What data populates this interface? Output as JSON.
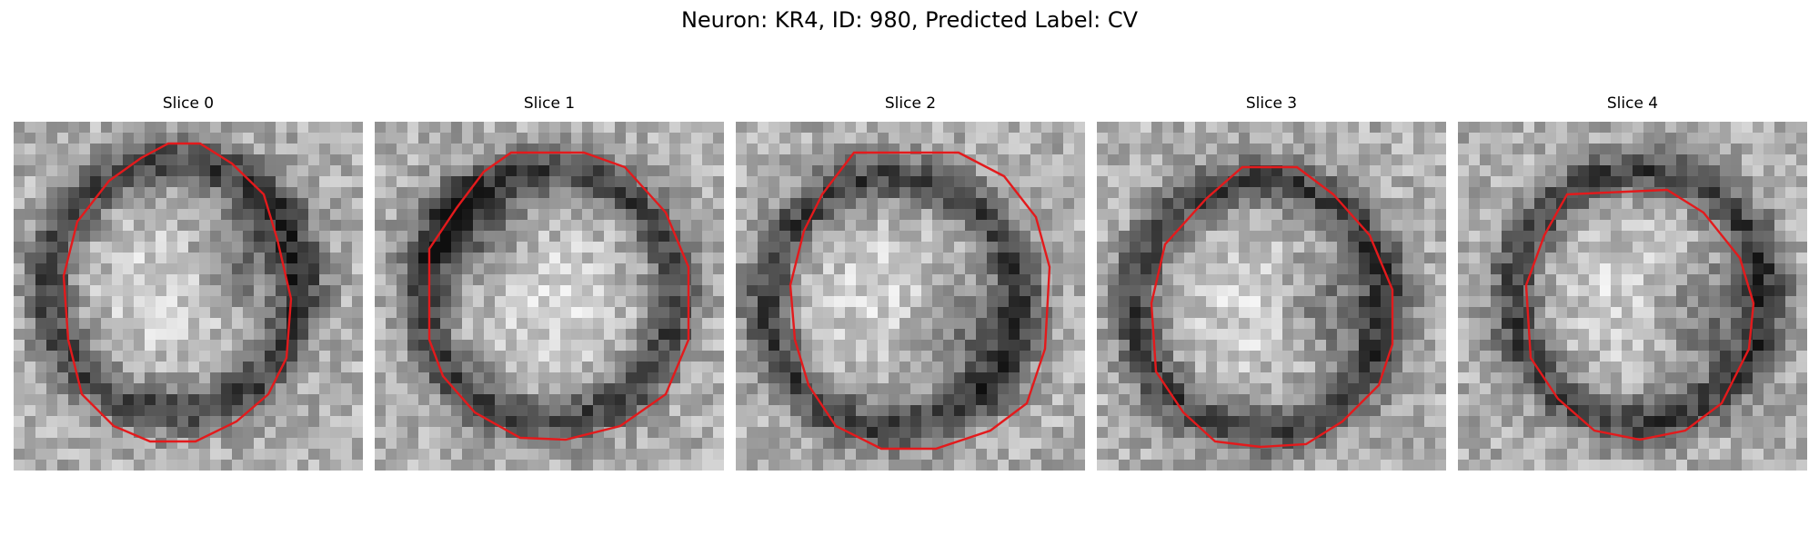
{
  "figure": {
    "title": "Neuron: KR4, ID: 980, Predicted Label: CV",
    "contour_color": "#e31a1c"
  },
  "panels": [
    {
      "title": "Slice 0",
      "blob_center": [
        0.46,
        0.47
      ],
      "dark_offset": [
        0.2,
        -0.08
      ]
    },
    {
      "title": "Slice 1",
      "blob_center": [
        0.5,
        0.5
      ],
      "dark_offset": [
        -0.22,
        -0.18
      ]
    },
    {
      "title": "Slice 2",
      "blob_center": [
        0.45,
        0.52
      ],
      "dark_offset": [
        0.18,
        0.1
      ]
    },
    {
      "title": "Slice 3",
      "blob_center": [
        0.47,
        0.53
      ],
      "dark_offset": [
        0.2,
        0.0
      ]
    },
    {
      "title": "Slice 4",
      "blob_center": [
        0.52,
        0.5
      ],
      "dark_offset": [
        0.18,
        0.05
      ]
    }
  ]
}
